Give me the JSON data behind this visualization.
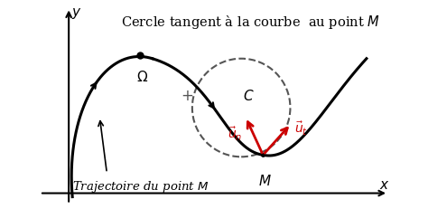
{
  "bg_color": "#ffffff",
  "title": "Cercle tangent à la courbe  au point $M$",
  "title_fontsize": 10.5,
  "label_traj": "Trajectoire du point $M$",
  "omega_label": "$\\Omega$",
  "C_label": "$C$",
  "plus_label": "+",
  "M_label": "$M$",
  "x_label": "$x$",
  "y_label": "$y$",
  "curve_color": "#000000",
  "circle_color": "#555555",
  "arrow_color": "#cc0000",
  "axis_color": "#000000"
}
